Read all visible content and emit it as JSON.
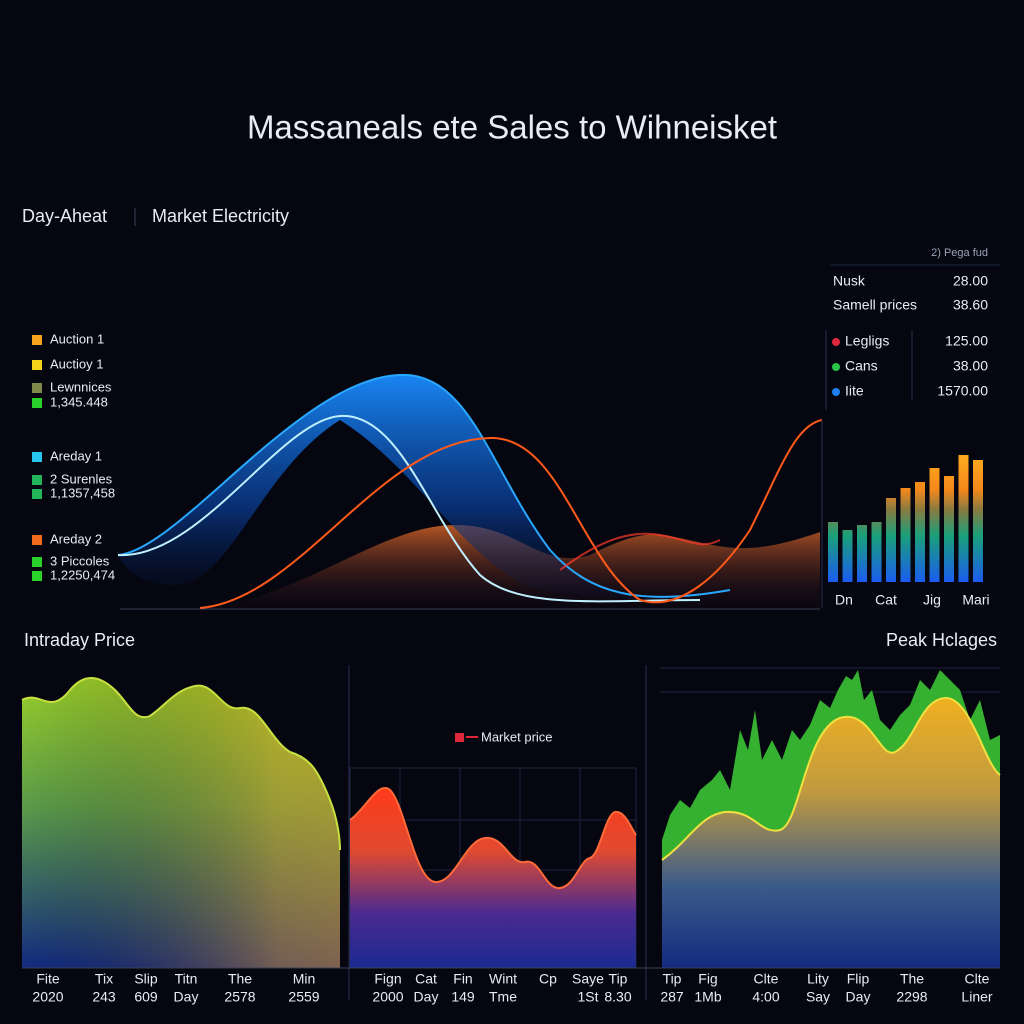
{
  "title": "Massaneals ete Sales to Wihneisket",
  "header": {
    "left": "Day-Aheat",
    "right": "Market Electricity"
  },
  "left_legend": [
    {
      "label": "Auction 1",
      "color": "#f5a21c"
    },
    {
      "label": "Auctioy 1",
      "color": "#f2d21b"
    },
    {
      "label": "Lewnnices",
      "color": "#7f8a4a"
    },
    {
      "label": "1,345.448",
      "color": "#2bd12b"
    },
    {
      "label": "Areday 1",
      "color": "#27c4f0"
    },
    {
      "label": "2 Surenles",
      "color": "#22b55a"
    },
    {
      "label": "1,1357,458",
      "color": "#22b55a"
    },
    {
      "label": "Areday 2",
      "color": "#f06a1c"
    },
    {
      "label": "3 Piccoles",
      "color": "#2bd12b"
    },
    {
      "label": "1,2250,474",
      "color": "#2bd12b"
    }
  ],
  "summary": {
    "caption": "2) Pega fud",
    "rows": [
      [
        "Nusk",
        "28.00"
      ],
      [
        "Samell prices",
        "38.60"
      ]
    ],
    "legend": [
      {
        "label": "Legligs",
        "value": "125.00",
        "color": "#e0283c"
      },
      {
        "label": "Cans",
        "value": "38.00",
        "color": "#2bc44a"
      },
      {
        "label": "Iite",
        "value": "1570.00",
        "color": "#1e7ff0"
      }
    ]
  },
  "bar_panel": {
    "labels": [
      "Dn",
      "Cat",
      "Jig",
      "Mari"
    ]
  },
  "intraday": {
    "title": "Intraday Price",
    "labels": [
      [
        "Fite",
        "2020"
      ],
      [
        "Tix",
        "243"
      ],
      [
        "Slip",
        "609"
      ],
      [
        "Titn",
        "Day"
      ],
      [
        "The",
        "2578"
      ],
      [
        "Min",
        "2559"
      ]
    ]
  },
  "market": {
    "legend": "Market price",
    "labels": [
      [
        "Fign",
        "2000"
      ],
      [
        "Cat",
        "Day"
      ],
      [
        "Fin",
        "149"
      ],
      [
        "Wint",
        "Tme"
      ],
      [
        "Cp",
        ""
      ],
      [
        "Saye",
        "1St"
      ],
      [
        "Tip",
        "8.30"
      ]
    ]
  },
  "peak": {
    "title": "Peak Hclages",
    "labels": [
      [
        "Tip",
        "287"
      ],
      [
        "Fig",
        "1Mb"
      ],
      [
        "Clte",
        "4:00"
      ],
      [
        "Lity",
        "Say"
      ],
      [
        "Flip",
        "Day"
      ],
      [
        "The",
        "2298"
      ],
      [
        "Clte",
        "Liner"
      ]
    ]
  }
}
